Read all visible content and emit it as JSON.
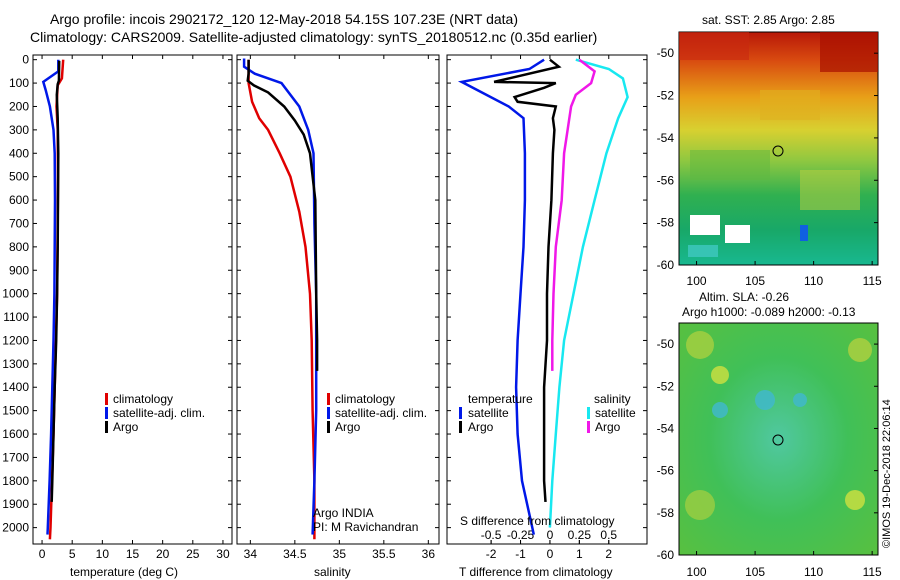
{
  "title_line1": "Argo profile: incois 2902172_120 12-May-2018 54.15S 107.23E (NRT data)",
  "title_line2": "Climatology: CARS2009. Satellite-adjusted climatology: synTS_20180512.nc (0.35d earlier)",
  "depth_ticks": [
    "0",
    "100",
    "200",
    "300",
    "400",
    "500",
    "600",
    "700",
    "800",
    "900",
    "1000",
    "1100",
    "1200",
    "1300",
    "1400",
    "1500",
    "1600",
    "1700",
    "1800",
    "1900",
    "2000"
  ],
  "colors": {
    "climatology": "#e00000",
    "satellite": "#0018e8",
    "argo": "#000000",
    "sal_sat": "#18e8f0",
    "sal_argo": "#f018e8"
  },
  "legend": {
    "climatology": "climatology",
    "satellite_adj": "satellite-adj. clim.",
    "argo": "Argo",
    "temperature": "temperature",
    "salinity": "salinity",
    "satellite": "satellite"
  },
  "credit1": "Argo INDIA",
  "credit2": "PI: M Ravichandran",
  "side_credit": "©IMOS 19-Dec-2018 22:06:14",
  "map1_title": "sat. SST: 2.85 Argo: 2.85",
  "map2_title1": "Altim. SLA: -0.26",
  "map2_title2": "Argo h1000: -0.089 h2000: -0.13",
  "map_lat_ticks": [
    "-50",
    "-52",
    "-54",
    "-56",
    "-58",
    "-60"
  ],
  "map_lon_ticks": [
    "100",
    "105",
    "110",
    "115"
  ],
  "chart_data": [
    {
      "type": "line",
      "id": "temperature",
      "xlabel": "temperature (deg C)",
      "ylabel": "depth",
      "xlim": [
        -1.5,
        31.5
      ],
      "ylim": [
        2070,
        -20
      ],
      "xticks": [
        0,
        5,
        10,
        15,
        20,
        25,
        30
      ],
      "series": [
        {
          "name": "climatology",
          "points": [
            [
              3.5,
              0
            ],
            [
              3.3,
              80
            ],
            [
              2.6,
              110
            ],
            [
              2.4,
              200
            ],
            [
              2.6,
              300
            ],
            [
              2.65,
              500
            ],
            [
              2.6,
              700
            ],
            [
              2.5,
              1000
            ],
            [
              2.3,
              1200
            ],
            [
              2.1,
              1400
            ],
            [
              1.9,
              1600
            ],
            [
              1.65,
              1800
            ],
            [
              1.4,
              2000
            ],
            [
              1.3,
              2050
            ]
          ]
        },
        {
          "name": "satellite-adj. clim.",
          "points": [
            [
              2.7,
              0
            ],
            [
              2.7,
              50
            ],
            [
              0.2,
              95
            ],
            [
              0.6,
              130
            ],
            [
              1.3,
              200
            ],
            [
              1.9,
              300
            ],
            [
              2.1,
              400
            ],
            [
              2.15,
              600
            ],
            [
              2.1,
              800
            ],
            [
              2.05,
              1000
            ],
            [
              1.9,
              1200
            ],
            [
              1.7,
              1400
            ],
            [
              1.5,
              1600
            ],
            [
              1.25,
              1800
            ],
            [
              0.95,
              2000
            ],
            [
              0.9,
              2030
            ]
          ]
        },
        {
          "name": "Argo",
          "points": [
            [
              2.85,
              5
            ],
            [
              2.8,
              90
            ],
            [
              2.6,
              105
            ],
            [
              2.45,
              150
            ],
            [
              2.6,
              250
            ],
            [
              2.7,
              400
            ],
            [
              2.65,
              600
            ],
            [
              2.6,
              800
            ],
            [
              2.5,
              1000
            ],
            [
              2.35,
              1200
            ],
            [
              2.1,
              1400
            ],
            [
              1.9,
              1600
            ],
            [
              1.7,
              1800
            ],
            [
              1.6,
              1890
            ]
          ]
        }
      ]
    },
    {
      "type": "line",
      "id": "salinity",
      "xlabel": "salinity",
      "ylabel": "depth",
      "xlim": [
        33.85,
        36.12
      ],
      "ylim": [
        2070,
        -20
      ],
      "xticks": [
        "34",
        "34.5",
        "35",
        "35.5",
        "36"
      ],
      "series": [
        {
          "name": "climatology",
          "points": [
            [
              33.98,
              0
            ],
            [
              33.98,
              100
            ],
            [
              34.02,
              180
            ],
            [
              34.1,
              250
            ],
            [
              34.2,
              300
            ],
            [
              34.33,
              400
            ],
            [
              34.45,
              500
            ],
            [
              34.55,
              650
            ],
            [
              34.62,
              800
            ],
            [
              34.67,
              1000
            ],
            [
              34.69,
              1200
            ],
            [
              34.7,
              1500
            ],
            [
              34.72,
              1800
            ],
            [
              34.72,
              2050
            ]
          ]
        },
        {
          "name": "satellite-adj. clim.",
          "points": [
            [
              33.93,
              -5
            ],
            [
              33.93,
              30
            ],
            [
              34.05,
              60
            ],
            [
              34.35,
              100
            ],
            [
              34.55,
              200
            ],
            [
              34.65,
              300
            ],
            [
              34.71,
              400
            ],
            [
              34.72,
              700
            ],
            [
              34.74,
              1000
            ],
            [
              34.74,
              1500
            ],
            [
              34.72,
              1800
            ],
            [
              34.7,
              2030
            ]
          ]
        },
        {
          "name": "Argo",
          "points": [
            [
              33.98,
              0
            ],
            [
              33.98,
              60
            ],
            [
              33.97,
              90
            ],
            [
              34.04,
              110
            ],
            [
              34.2,
              140
            ],
            [
              34.38,
              200
            ],
            [
              34.5,
              260
            ],
            [
              34.6,
              320
            ],
            [
              34.67,
              400
            ],
            [
              34.73,
              600
            ],
            [
              34.74,
              1000
            ],
            [
              34.75,
              1200
            ],
            [
              34.75,
              1330
            ]
          ]
        }
      ]
    },
    {
      "type": "line",
      "id": "difference",
      "xlabel": "T difference from climatology",
      "x2label": "S difference from climatology",
      "xlim": [
        -3.5,
        3.3
      ],
      "x2lim": [
        -0.875,
        0.825
      ],
      "ylim": [
        2070,
        -20
      ],
      "xticks": [
        "-2",
        "-1",
        "0",
        "1",
        "2"
      ],
      "x2ticks": [
        "-0.5",
        "-0.25",
        "0",
        "0.25",
        "0.5"
      ],
      "series": [
        {
          "name": "temperature satellite",
          "axis": "T",
          "points": [
            [
              -0.2,
              0
            ],
            [
              -0.7,
              40
            ],
            [
              -3.0,
              95
            ],
            [
              -1.4,
              200
            ],
            [
              -0.9,
              250
            ],
            [
              -0.85,
              400
            ],
            [
              -0.85,
              600
            ],
            [
              -0.9,
              800
            ],
            [
              -1.0,
              1000
            ],
            [
              -1.1,
              1200
            ],
            [
              -1.15,
              1400
            ],
            [
              -1.1,
              1600
            ],
            [
              -0.95,
              1800
            ],
            [
              -0.6,
              2000
            ],
            [
              -0.55,
              2030
            ]
          ]
        },
        {
          "name": "temperature Argo",
          "axis": "T",
          "points": [
            [
              0.0,
              0
            ],
            [
              0.3,
              30
            ],
            [
              -1.9,
              95
            ],
            [
              0.2,
              100
            ],
            [
              -0.2,
              120
            ],
            [
              -1.2,
              160
            ],
            [
              -1.1,
              180
            ],
            [
              0.2,
              200
            ],
            [
              0.1,
              250
            ],
            [
              0.15,
              300
            ],
            [
              0.1,
              400
            ],
            [
              0.05,
              600
            ],
            [
              -0.05,
              800
            ],
            [
              -0.1,
              1000
            ],
            [
              -0.1,
              1200
            ],
            [
              -0.2,
              1400
            ],
            [
              -0.2,
              1600
            ],
            [
              -0.2,
              1800
            ],
            [
              -0.15,
              1890
            ]
          ]
        },
        {
          "name": "salinity satellite",
          "axis": "S",
          "points": [
            [
              0.22,
              0
            ],
            [
              0.5,
              40
            ],
            [
              0.62,
              80
            ],
            [
              0.66,
              160
            ],
            [
              0.58,
              250
            ],
            [
              0.48,
              400
            ],
            [
              0.38,
              600
            ],
            [
              0.28,
              800
            ],
            [
              0.2,
              1000
            ],
            [
              0.12,
              1200
            ],
            [
              0.08,
              1400
            ],
            [
              0.05,
              1600
            ],
            [
              0.02,
              1800
            ],
            [
              0.0,
              2000
            ]
          ]
        },
        {
          "name": "salinity Argo",
          "axis": "S",
          "points": [
            [
              0.25,
              0
            ],
            [
              0.38,
              50
            ],
            [
              0.35,
              100
            ],
            [
              0.22,
              150
            ],
            [
              0.18,
              200
            ],
            [
              0.15,
              300
            ],
            [
              0.12,
              400
            ],
            [
              0.1,
              600
            ],
            [
              0.05,
              800
            ],
            [
              0.03,
              1000
            ],
            [
              0.02,
              1200
            ],
            [
              0.02,
              1330
            ]
          ]
        }
      ]
    }
  ]
}
